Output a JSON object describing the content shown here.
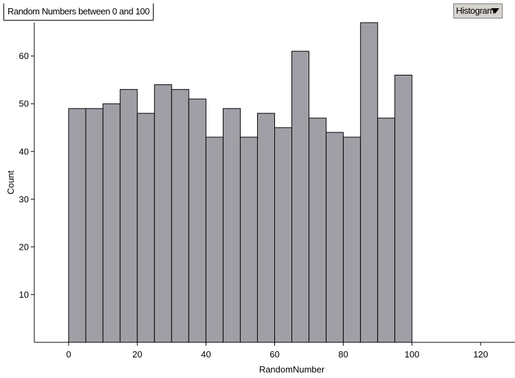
{
  "title": "Random Numbers between 0 and 100",
  "chart_type_selector": {
    "label": "Histogram"
  },
  "chart_data": {
    "type": "bar",
    "title": "Random Numbers between 0 and 100",
    "xlabel": "RandomNumber",
    "ylabel": "Count",
    "bin_width": 5,
    "bins": [
      {
        "start": 0,
        "end": 5,
        "count": 49
      },
      {
        "start": 5,
        "end": 10,
        "count": 49
      },
      {
        "start": 10,
        "end": 15,
        "count": 50
      },
      {
        "start": 15,
        "end": 20,
        "count": 53
      },
      {
        "start": 20,
        "end": 25,
        "count": 48
      },
      {
        "start": 25,
        "end": 30,
        "count": 54
      },
      {
        "start": 30,
        "end": 35,
        "count": 53
      },
      {
        "start": 35,
        "end": 40,
        "count": 51
      },
      {
        "start": 40,
        "end": 45,
        "count": 43
      },
      {
        "start": 45,
        "end": 50,
        "count": 49
      },
      {
        "start": 50,
        "end": 55,
        "count": 43
      },
      {
        "start": 55,
        "end": 60,
        "count": 48
      },
      {
        "start": 60,
        "end": 65,
        "count": 45
      },
      {
        "start": 65,
        "end": 70,
        "count": 61
      },
      {
        "start": 70,
        "end": 75,
        "count": 47
      },
      {
        "start": 75,
        "end": 80,
        "count": 44
      },
      {
        "start": 80,
        "end": 85,
        "count": 43
      },
      {
        "start": 85,
        "end": 90,
        "count": 67
      },
      {
        "start": 90,
        "end": 95,
        "count": 47
      },
      {
        "start": 95,
        "end": 100,
        "count": 56
      }
    ],
    "xlim": [
      -10,
      130
    ],
    "ylim": [
      0,
      67
    ],
    "x_ticks": [
      0,
      20,
      40,
      60,
      80,
      100,
      120
    ],
    "x_tick_labels": [
      "0",
      "20",
      "40",
      "60",
      "80",
      "100",
      "120"
    ],
    "y_ticks": [
      10,
      20,
      30,
      40,
      50,
      60
    ],
    "y_tick_labels": [
      "10",
      "20",
      "30",
      "40",
      "50",
      "60"
    ],
    "grid": false,
    "legend": "none",
    "bar_color": "#a09fa6",
    "bar_edge_color": "#000000"
  }
}
